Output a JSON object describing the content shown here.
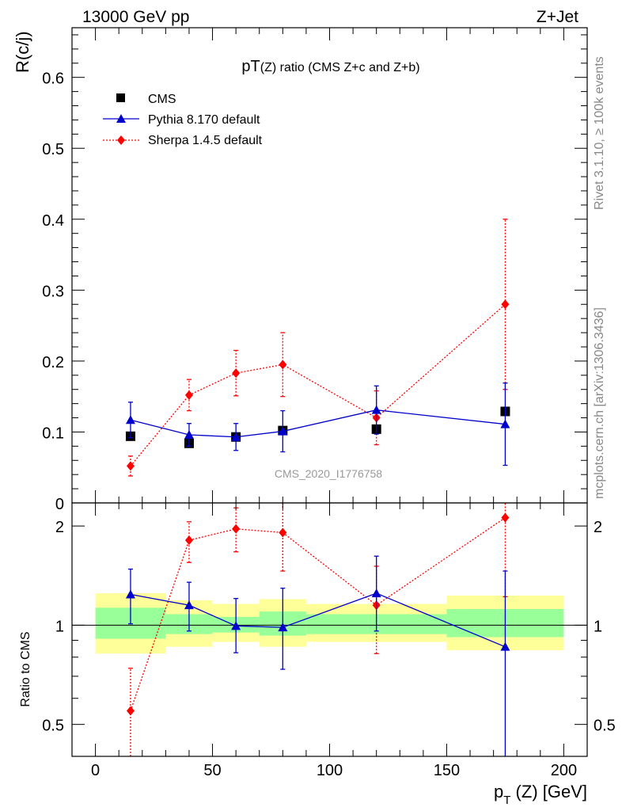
{
  "header": {
    "energy_label": "13000 GeV pp",
    "process_label": "Z+Jet",
    "side_label_top": "Rivet 3.1.10, ≥ 100k events",
    "side_label_bottom": "mcplots.cern.ch [arXiv:1306.3436]"
  },
  "colors": {
    "data": "#000000",
    "pythia": "#0000cc",
    "sherpa": "#ff0000",
    "band_inner": "#99ff99",
    "band_outer": "#ffff99",
    "watermark": "#999999"
  },
  "chart_data": [
    {
      "type": "scatter",
      "panel": "main",
      "title_main": "pT",
      "title_sub": "(Z)",
      "title_rest": " ratio (CMS  Z+c and Z+b)",
      "ylabel": "R(c/j)",
      "watermark": "CMS_2020_I1776758",
      "xlim": [
        -10,
        210
      ],
      "ylim": [
        0,
        0.67
      ],
      "yticks": [
        0,
        0.1,
        0.2,
        0.3,
        0.4,
        0.5,
        0.6
      ],
      "ytick_labels": [
        "0",
        "0.1",
        "0.2",
        "0.3",
        "0.4",
        "0.5",
        "0.6"
      ],
      "legend": [
        "CMS",
        "Pythia 8.170 default",
        "Sherpa 1.4.5 default"
      ],
      "series": [
        {
          "name": "CMS",
          "x": [
            15,
            40,
            60,
            80,
            120,
            175
          ],
          "y": [
            0.094,
            0.084,
            0.093,
            0.102,
            0.104,
            0.129
          ],
          "xlo": [
            0,
            30,
            50,
            70,
            90,
            150
          ],
          "xhi": [
            30,
            50,
            70,
            90,
            150,
            200
          ]
        },
        {
          "name": "Pythia 8.170 default",
          "x": [
            15,
            40,
            60,
            80,
            120,
            175
          ],
          "y": [
            0.117,
            0.096,
            0.093,
            0.101,
            0.131,
            0.111
          ],
          "yerr_lo": [
            0.025,
            0.016,
            0.019,
            0.029,
            0.034,
            0.058
          ],
          "yerr_hi": [
            0.025,
            0.016,
            0.019,
            0.029,
            0.034,
            0.058
          ]
        },
        {
          "name": "Sherpa 1.4.5 default",
          "x": [
            15,
            40,
            60,
            80,
            120,
            175
          ],
          "y": [
            0.052,
            0.152,
            0.183,
            0.195,
            0.12,
            0.28
          ],
          "yerr_lo": [
            0.014,
            0.022,
            0.032,
            0.045,
            0.038,
            0.12
          ],
          "yerr_hi": [
            0.014,
            0.022,
            0.032,
            0.045,
            0.038,
            0.12
          ]
        }
      ]
    },
    {
      "type": "scatter",
      "panel": "ratio",
      "ylabel": "Ratio to CMS",
      "xlabel_main": "p",
      "xlabel_sub": "T",
      "xlabel_rest": " (Z) [GeV]",
      "xlim": [
        -10,
        210
      ],
      "ylim": [
        0.4,
        2.35
      ],
      "yscale": "log",
      "xticks": [
        0,
        50,
        100,
        150,
        200
      ],
      "xtick_labels": [
        "0",
        "50",
        "100",
        "150",
        "200"
      ],
      "yticks": [
        0.5,
        1,
        2
      ],
      "ytick_labels": [
        "0.5",
        "1",
        "2"
      ],
      "bands": [
        {
          "xlo": 0,
          "xhi": 30,
          "inner": [
            0.91,
            1.13
          ],
          "outer": [
            0.82,
            1.25
          ]
        },
        {
          "xlo": 30,
          "xhi": 50,
          "inner": [
            0.94,
            1.08
          ],
          "outer": [
            0.86,
            1.19
          ]
        },
        {
          "xlo": 50,
          "xhi": 70,
          "inner": [
            0.95,
            1.06
          ],
          "outer": [
            0.89,
            1.16
          ]
        },
        {
          "xlo": 70,
          "xhi": 90,
          "inner": [
            0.93,
            1.1
          ],
          "outer": [
            0.86,
            1.2
          ]
        },
        {
          "xlo": 90,
          "xhi": 150,
          "inner": [
            0.94,
            1.08
          ],
          "outer": [
            0.89,
            1.16
          ]
        },
        {
          "xlo": 150,
          "xhi": 200,
          "inner": [
            0.92,
            1.12
          ],
          "outer": [
            0.84,
            1.23
          ]
        }
      ],
      "series": [
        {
          "name": "Pythia 8.170 default",
          "x": [
            15,
            40,
            60,
            80,
            120,
            175
          ],
          "y": [
            1.24,
            1.15,
            0.995,
            0.985,
            1.25,
            0.86
          ],
          "yerr_lo": [
            0.23,
            0.19,
            0.17,
            0.25,
            0.29,
            0.52
          ],
          "yerr_hi": [
            0.24,
            0.2,
            0.21,
            0.31,
            0.37,
            0.6
          ]
        },
        {
          "name": "Sherpa 1.4.5 default",
          "x": [
            15,
            40,
            60,
            80,
            120,
            175
          ],
          "y": [
            0.55,
            1.81,
            1.96,
            1.91,
            1.15,
            2.12
          ],
          "yerr_lo": [
            0.2,
            0.26,
            0.29,
            0.45,
            0.33,
            0.9
          ],
          "yerr_hi": [
            0.19,
            0.25,
            0.31,
            0.5,
            0.36,
            0.9
          ]
        }
      ]
    }
  ]
}
